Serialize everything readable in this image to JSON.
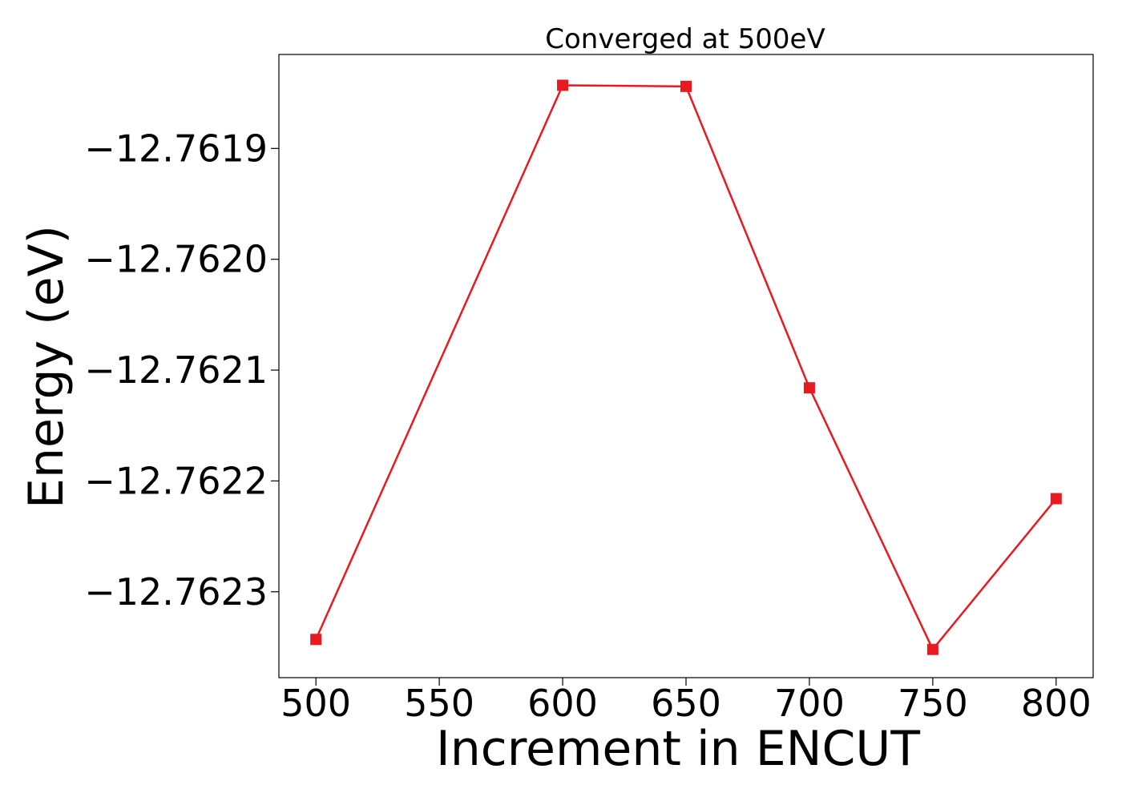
{
  "chart_data": {
    "type": "line",
    "title": "Converged at 500eV",
    "xlabel": "Increment in ENCUT",
    "ylabel": "Energy (eV)",
    "x": [
      500,
      600,
      650,
      700,
      750,
      800
    ],
    "series": [
      {
        "values": [
          -12.762343,
          -12.761843,
          -12.761844,
          -12.762116,
          -12.762352,
          -12.762216
        ],
        "color": "#e8191f",
        "marker": "square"
      }
    ],
    "xticks": [
      500,
      550,
      600,
      650,
      700,
      750,
      800
    ],
    "xtick_labels": [
      "500",
      "550",
      "600",
      "650",
      "700",
      "750",
      "800"
    ],
    "yticks": [
      -12.7619,
      -12.762,
      -12.7621,
      -12.7622,
      -12.7623
    ],
    "ytick_labels": [
      "−12.7619",
      "−12.7620",
      "−12.7621",
      "−12.7622",
      "−12.7623"
    ],
    "xlim": [
      485,
      815
    ],
    "ylim": [
      -12.7623775,
      -12.7618152
    ],
    "grid": false,
    "legend": false
  }
}
